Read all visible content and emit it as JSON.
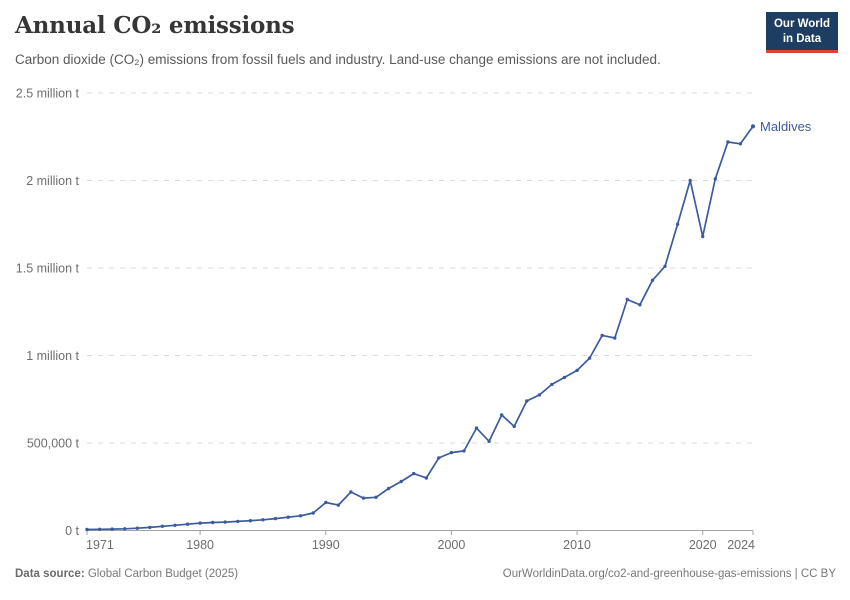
{
  "header": {
    "title": "Annual CO₂ emissions",
    "subtitle": "Carbon dioxide (CO₂) emissions from fossil fuels and industry. Land-use change emissions are not included.",
    "logo": {
      "line1": "Our World",
      "line2": "in Data"
    }
  },
  "footer": {
    "source_label": "Data source:",
    "source_value": " Global Carbon Budget (2025)",
    "link": "OurWorldinData.org/co2-and-greenhouse-gas-emissions | CC BY"
  },
  "colors": {
    "line": "#3b5b9c",
    "grid": "#dadada",
    "axis": "#a3a3a3",
    "tick_text": "#6e6e6e",
    "logo_bg": "#1d3d63",
    "logo_red": "#e0432f"
  },
  "chart_data": {
    "type": "line",
    "title": "Annual CO₂ emissions",
    "series_label": "Maldives",
    "xlabel": "",
    "ylabel": "",
    "xlim": [
      1971,
      2024
    ],
    "ylim": [
      0,
      2500000
    ],
    "grid": "dashed-horizontal",
    "legend_position": "end-of-line-label",
    "xticks": [
      1971,
      1980,
      1990,
      2000,
      2010,
      2020,
      2024
    ],
    "yticks": [
      {
        "value": 0,
        "label": "0 t"
      },
      {
        "value": 500000,
        "label": "500,000 t"
      },
      {
        "value": 1000000,
        "label": "1 million t"
      },
      {
        "value": 1500000,
        "label": "1.5 million t"
      },
      {
        "value": 2000000,
        "label": "2 million t"
      },
      {
        "value": 2500000,
        "label": "2.5 million t"
      }
    ],
    "x": [
      1971,
      1972,
      1973,
      1974,
      1975,
      1976,
      1977,
      1978,
      1979,
      1980,
      1981,
      1982,
      1983,
      1984,
      1985,
      1986,
      1987,
      1988,
      1989,
      1990,
      1991,
      1992,
      1993,
      1994,
      1995,
      1996,
      1997,
      1998,
      1999,
      2000,
      2001,
      2002,
      2003,
      2004,
      2005,
      2006,
      2007,
      2008,
      2009,
      2010,
      2011,
      2012,
      2013,
      2014,
      2015,
      2016,
      2017,
      2018,
      2019,
      2020,
      2021,
      2022,
      2023,
      2024
    ],
    "y": [
      6000,
      7000,
      8000,
      10000,
      13000,
      18000,
      24000,
      30000,
      36000,
      42000,
      46000,
      48000,
      52000,
      56000,
      61000,
      68000,
      76000,
      84000,
      100000,
      160000,
      145000,
      220000,
      185000,
      190000,
      240000,
      280000,
      325000,
      300000,
      415000,
      445000,
      455000,
      585000,
      510000,
      660000,
      595000,
      740000,
      775000,
      835000,
      875000,
      915000,
      985000,
      1115000,
      1100000,
      1320000,
      1290000,
      1430000,
      1510000,
      1750000,
      2000000,
      1680000,
      2010000,
      2220000,
      2210000,
      2310000
    ]
  }
}
